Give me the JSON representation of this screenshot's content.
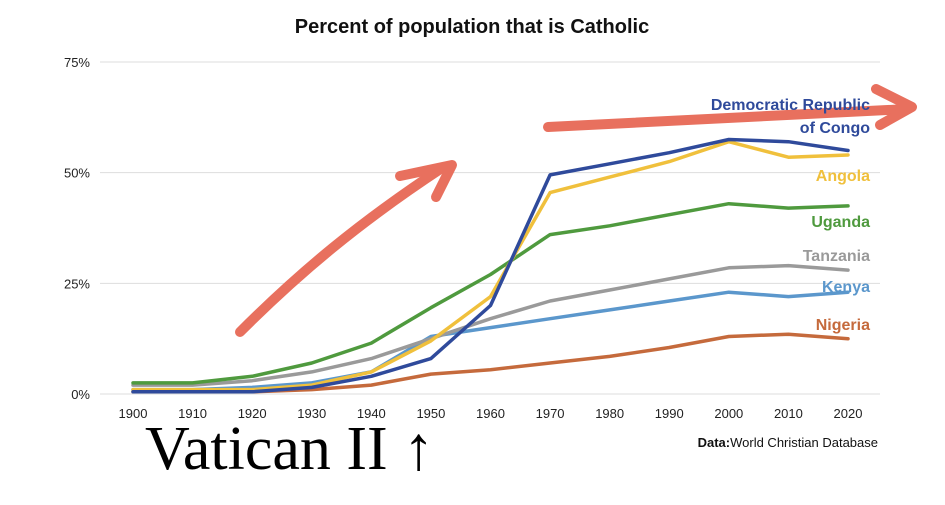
{
  "chart_data": {
    "type": "line",
    "title": "Percent of population that is Catholic",
    "x": [
      1900,
      1910,
      1920,
      1930,
      1940,
      1950,
      1960,
      1970,
      1980,
      1990,
      2000,
      2010,
      2020
    ],
    "ylim": [
      0,
      75
    ],
    "yticks": [
      "0%",
      "25%",
      "50%",
      "75%"
    ],
    "ytick_values": [
      0,
      25,
      50,
      75
    ],
    "grid": true,
    "legend": "inline labels at line ends",
    "series": [
      {
        "name": "Democratic Republic of Congo",
        "label_lines": [
          "Democratic Republic",
          "of Congo"
        ],
        "color": "#2f4a9b",
        "values": [
          0.5,
          0.5,
          0.5,
          1.5,
          4,
          8,
          20,
          49.5,
          52,
          54.5,
          57.5,
          57,
          55
        ]
      },
      {
        "name": "Angola",
        "label_lines": [
          "Angola"
        ],
        "color": "#f0c03c",
        "values": [
          1,
          1,
          1,
          2,
          5,
          12,
          22,
          45.5,
          49,
          52.5,
          57,
          53.5,
          54
        ]
      },
      {
        "name": "Uganda",
        "label_lines": [
          "Uganda"
        ],
        "color": "#4f9a3e",
        "values": [
          2.5,
          2.5,
          4,
          7,
          11.5,
          19.5,
          27,
          36,
          38,
          40.5,
          43,
          42,
          42.5
        ]
      },
      {
        "name": "Tanzania",
        "label_lines": [
          "Tanzania"
        ],
        "color": "#9a9a9a",
        "values": [
          2,
          2,
          3,
          5,
          8,
          12.5,
          17,
          21,
          23.5,
          26,
          28.5,
          29,
          28
        ]
      },
      {
        "name": "Kenya",
        "label_lines": [
          "Kenya"
        ],
        "color": "#5b97cc",
        "values": [
          1,
          1,
          1.5,
          2.5,
          5,
          13,
          15,
          17,
          19,
          21,
          23,
          22,
          23
        ]
      },
      {
        "name": "Nigeria",
        "label_lines": [
          "Nigeria"
        ],
        "color": "#c56a3c",
        "values": [
          0.5,
          0.5,
          0.5,
          1,
          2,
          4.5,
          5.5,
          7,
          8.5,
          10.5,
          13,
          13.5,
          12.5
        ]
      }
    ],
    "source": {
      "prefix": "Data:",
      "text": "World Christian Database"
    }
  },
  "annotations": {
    "caption": "Vatican II ↑",
    "arrow_color": "#e8705e"
  }
}
